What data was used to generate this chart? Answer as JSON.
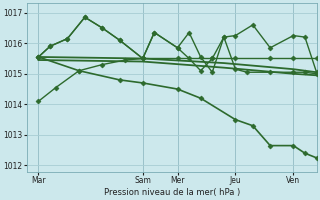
{
  "background_color": "#cce8ec",
  "grid_color": "#a8cdd4",
  "line_color": "#2d6a2d",
  "xlim": [
    0,
    100
  ],
  "ylim": [
    1011.8,
    1017.3
  ],
  "yticks": [
    1012,
    1013,
    1014,
    1015,
    1016,
    1017
  ],
  "xlabel": "Pression niveau de la mer( hPa )",
  "day_labels": [
    "Mar",
    "Sam",
    "Mer",
    "Jeu",
    "Ven"
  ],
  "day_positions": [
    4,
    40,
    52,
    72,
    92
  ],
  "series": [
    {
      "x": [
        4,
        8,
        14,
        20,
        26,
        32,
        40,
        44,
        52,
        56,
        60,
        64,
        68,
        72,
        78,
        84,
        92,
        96,
        100
      ],
      "y": [
        1015.55,
        1015.9,
        1016.15,
        1016.85,
        1016.5,
        1016.1,
        1015.5,
        1016.35,
        1015.85,
        1016.35,
        1015.55,
        1015.05,
        1016.2,
        1016.25,
        1016.6,
        1015.85,
        1016.25,
        1016.2,
        1015.05
      ],
      "marker": "D",
      "markersize": 2.5,
      "lw": 1.0
    },
    {
      "x": [
        4,
        8,
        14,
        20,
        26,
        32,
        40,
        44,
        52,
        56,
        60,
        64,
        68,
        72,
        76,
        84,
        92,
        96,
        100
      ],
      "y": [
        1015.55,
        1015.9,
        1016.15,
        1016.85,
        1016.5,
        1016.1,
        1015.5,
        1016.35,
        1015.85,
        1015.5,
        1015.1,
        1015.5,
        1016.2,
        1015.15,
        1015.05,
        1015.05,
        1015.05,
        1015.05,
        1015.0
      ],
      "marker": "D",
      "markersize": 2.5,
      "lw": 1.0
    },
    {
      "x": [
        4,
        40,
        68,
        92,
        100
      ],
      "y": [
        1015.55,
        1015.5,
        1015.35,
        1015.15,
        1015.05
      ],
      "marker": null,
      "markersize": 0,
      "lw": 1.3
    },
    {
      "x": [
        4,
        40,
        68,
        92,
        100
      ],
      "y": [
        1015.45,
        1015.4,
        1015.2,
        1015.0,
        1014.95
      ],
      "marker": null,
      "markersize": 0,
      "lw": 1.3
    },
    {
      "x": [
        4,
        10,
        18,
        26,
        34,
        40,
        52,
        64,
        72,
        84,
        92,
        100
      ],
      "y": [
        1014.1,
        1014.55,
        1015.1,
        1015.3,
        1015.45,
        1015.5,
        1015.5,
        1015.5,
        1015.5,
        1015.5,
        1015.5,
        1015.5
      ],
      "marker": "D",
      "markersize": 2.5,
      "lw": 1.0
    },
    {
      "x": [
        4,
        18,
        32,
        40,
        52,
        60,
        72,
        78,
        84,
        92,
        96,
        100
      ],
      "y": [
        1015.55,
        1015.1,
        1014.8,
        1014.7,
        1014.5,
        1014.2,
        1013.5,
        1013.3,
        1012.65,
        1012.65,
        1012.4,
        1012.25
      ],
      "marker": "D",
      "markersize": 2.5,
      "lw": 1.2
    }
  ]
}
